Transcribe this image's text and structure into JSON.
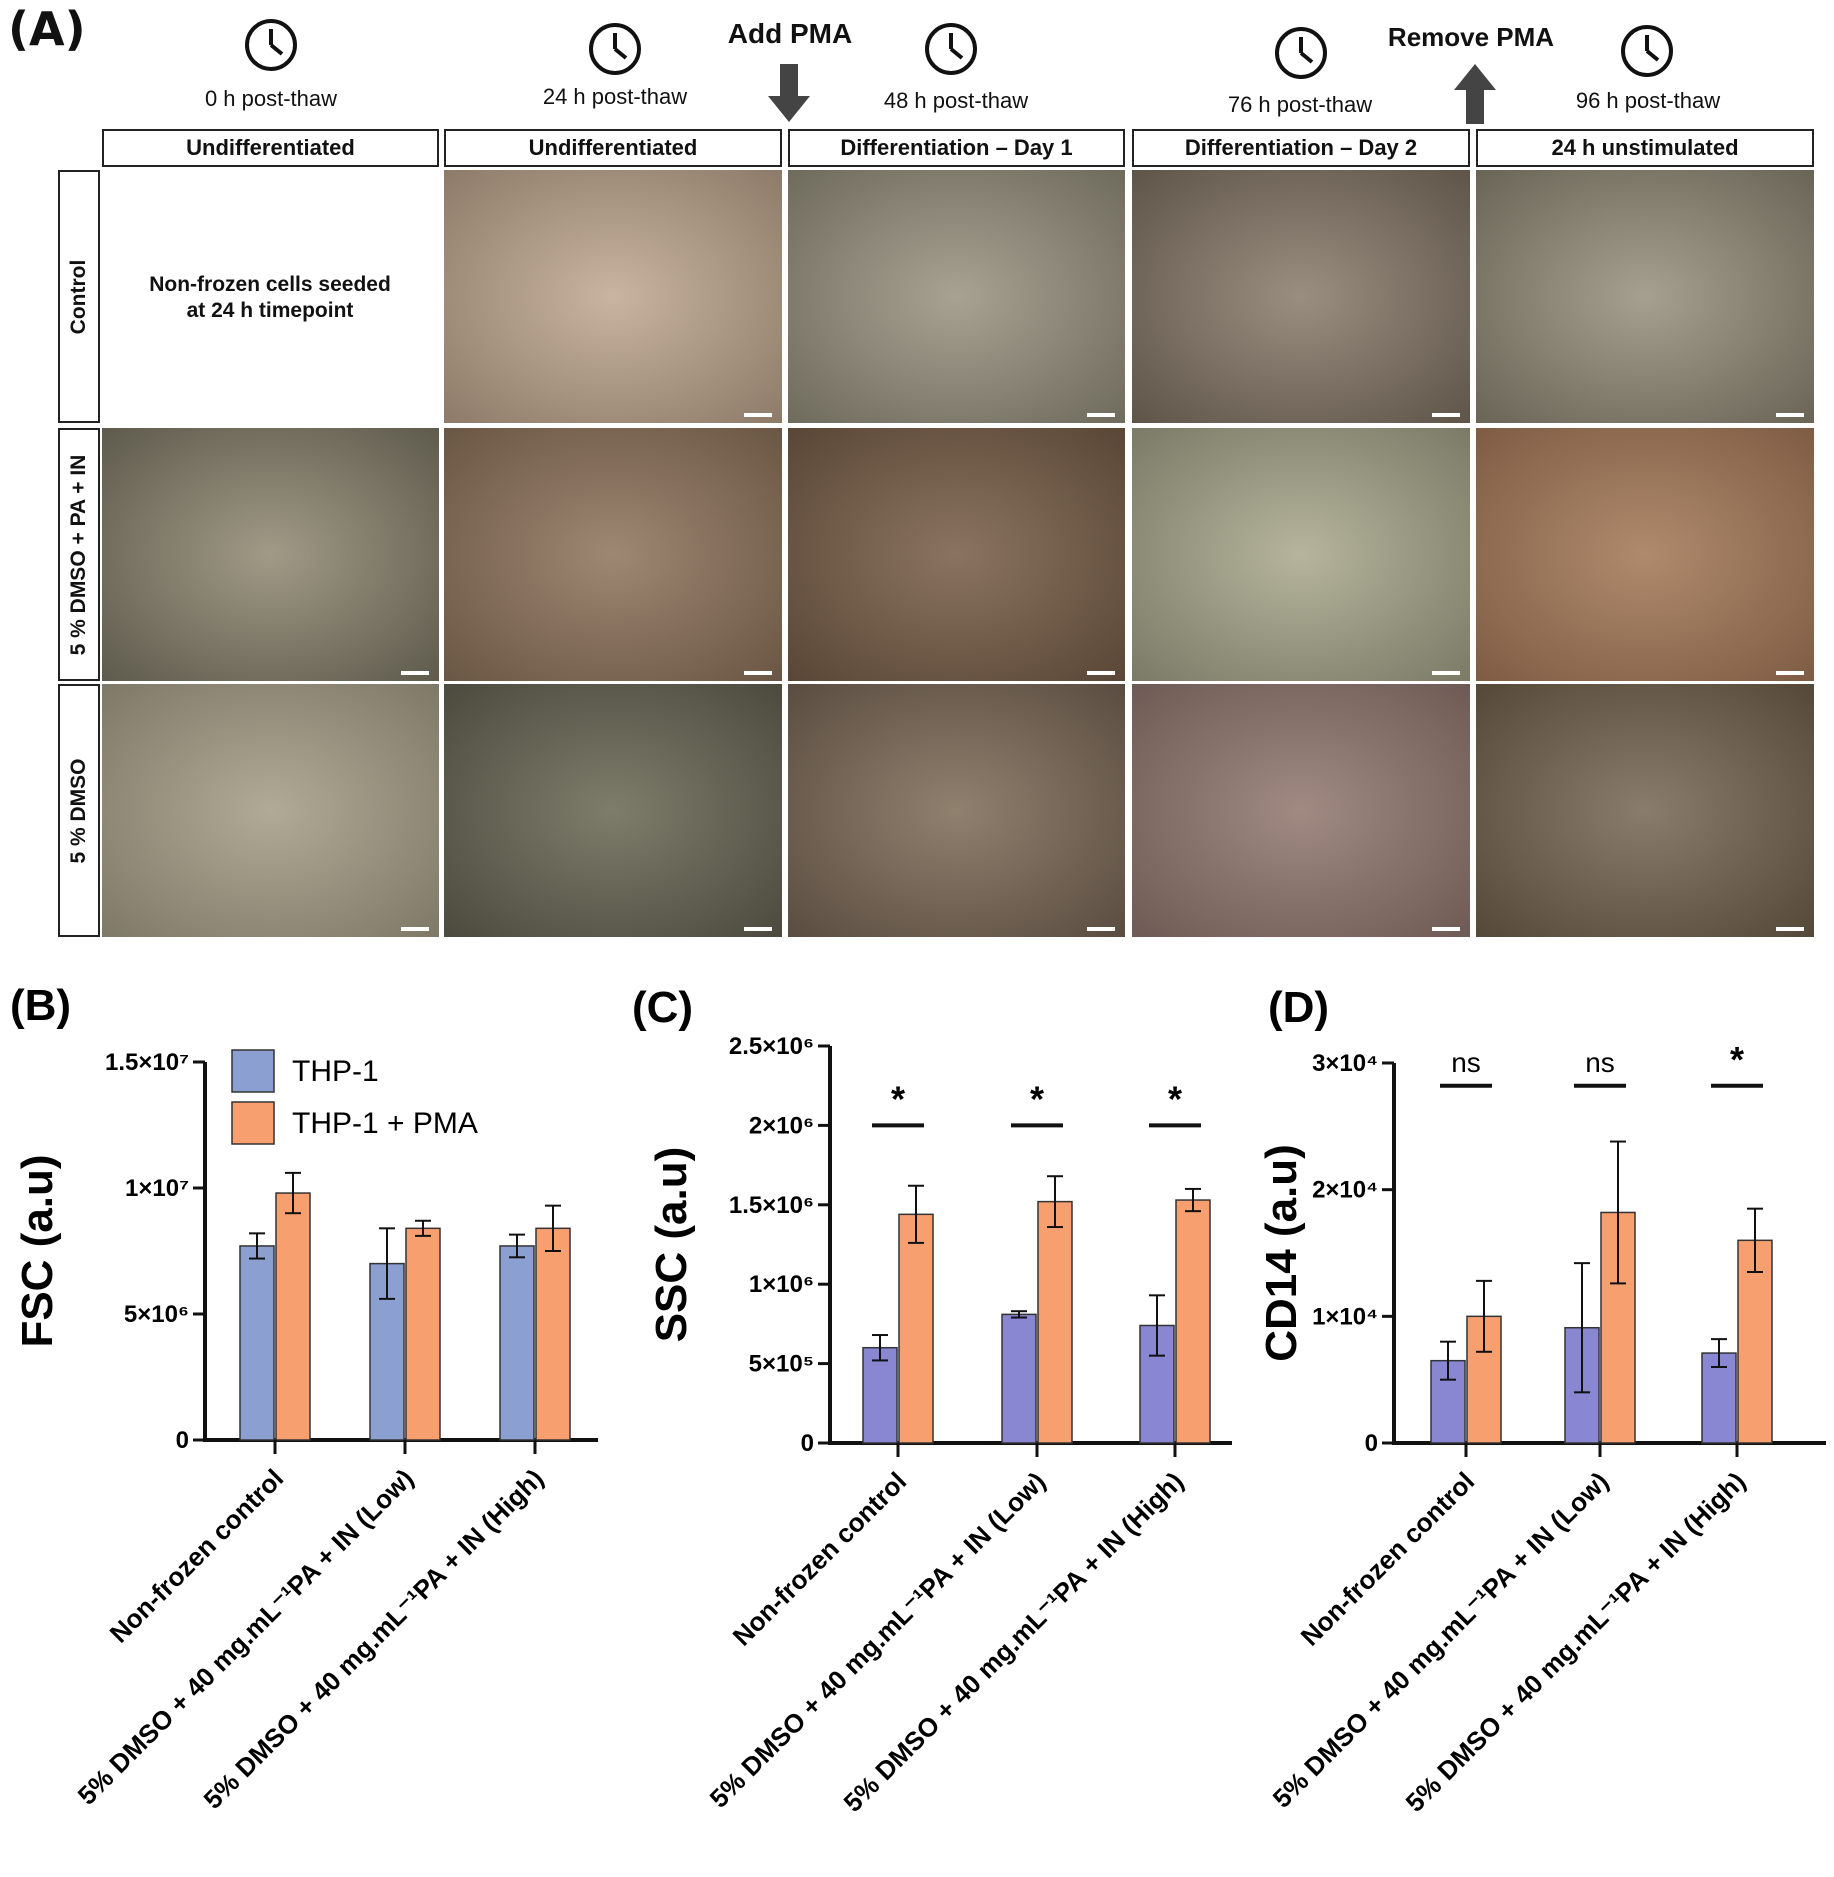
{
  "panel_a": {
    "letter": "(A)",
    "timepoints": [
      "0 h post-thaw",
      "24 h post-thaw",
      "48 h post-thaw",
      "76 h post-thaw",
      "96 h post-thaw"
    ],
    "add_event": "Add PMA",
    "remove_event": "Remove PMA",
    "columns": [
      "Undifferentiated",
      "Undifferentiated",
      "Differentiation – Day 1",
      "Differentiation – Day 2",
      "24 h unstimulated"
    ],
    "rows": [
      "Control",
      "5 % DMSO + PA + IN",
      "5 % DMSO"
    ],
    "nonfrozen_note_line1": "Non-frozen cells seeded",
    "nonfrozen_note_line2": "at 24 h timepoint"
  },
  "chart_data": [
    {
      "panel": "(B)",
      "type": "bar",
      "title": "",
      "ylabel": "FSC (a.u)",
      "categories": [
        "Non-frozen control",
        "5% DMSO + 40 mg.mL⁻¹PA + IN (Low)",
        "5% DMSO + 40 mg.mL⁻¹PA + IN (High)"
      ],
      "ylim": [
        0,
        15000000
      ],
      "yticks": [
        0,
        5000000,
        10000000,
        15000000
      ],
      "ytick_labels": [
        "0",
        "5×10⁶",
        "1×10⁷",
        "1.5×10⁷"
      ],
      "legend": "top-left",
      "series": [
        {
          "name": "THP-1",
          "color": "#8b9fd0",
          "values": [
            7700000,
            7000000,
            7700000
          ],
          "errors": [
            500000,
            1400000,
            450000
          ]
        },
        {
          "name": "THP-1 + PMA",
          "color": "#f79f6e",
          "values": [
            9800000,
            8400000,
            8400000
          ],
          "errors": [
            800000,
            300000,
            900000
          ]
        }
      ],
      "significance": []
    },
    {
      "panel": "(C)",
      "type": "bar",
      "title": "",
      "ylabel": "SSC (a.u)",
      "categories": [
        "Non-frozen control",
        "5% DMSO + 40 mg.mL⁻¹PA + IN (Low)",
        "5% DMSO + 40 mg.mL⁻¹PA + IN (High)"
      ],
      "ylim": [
        0,
        2500000
      ],
      "yticks": [
        0,
        500000,
        1000000,
        1500000,
        2000000,
        2500000
      ],
      "ytick_labels": [
        "0",
        "5×10⁵",
        "1×10⁶",
        "1.5×10⁶",
        "2×10⁶",
        "2.5×10⁶"
      ],
      "series": [
        {
          "name": "THP-1",
          "color": "#8a87d2",
          "values": [
            600000,
            810000,
            740000
          ],
          "errors": [
            80000,
            20000,
            190000
          ]
        },
        {
          "name": "THP-1 + PMA",
          "color": "#f79f6e",
          "values": [
            1440000,
            1520000,
            1530000
          ],
          "errors": [
            180000,
            160000,
            70000
          ]
        }
      ],
      "significance": [
        "*",
        "*",
        "*"
      ]
    },
    {
      "panel": "(D)",
      "type": "bar",
      "title": "",
      "ylabel": "CD14 (a.u)",
      "categories": [
        "Non-frozen control",
        "5% DMSO + 40 mg.mL⁻¹PA + IN (Low)",
        "5% DMSO + 40 mg.mL⁻¹PA + IN (High)"
      ],
      "ylim": [
        0,
        30000
      ],
      "yticks": [
        0,
        10000,
        20000,
        30000
      ],
      "ytick_labels": [
        "0",
        "1×10⁴",
        "2×10⁴",
        "3×10⁴"
      ],
      "series": [
        {
          "name": "THP-1",
          "color": "#8a87d2",
          "values": [
            6500,
            9100,
            7100
          ],
          "errors": [
            1500,
            5100,
            1100
          ]
        },
        {
          "name": "THP-1 + PMA",
          "color": "#f79f6e",
          "values": [
            10000,
            18200,
            16000
          ],
          "errors": [
            2800,
            5600,
            2500
          ]
        }
      ],
      "significance": [
        "ns",
        "ns",
        "*"
      ]
    }
  ]
}
